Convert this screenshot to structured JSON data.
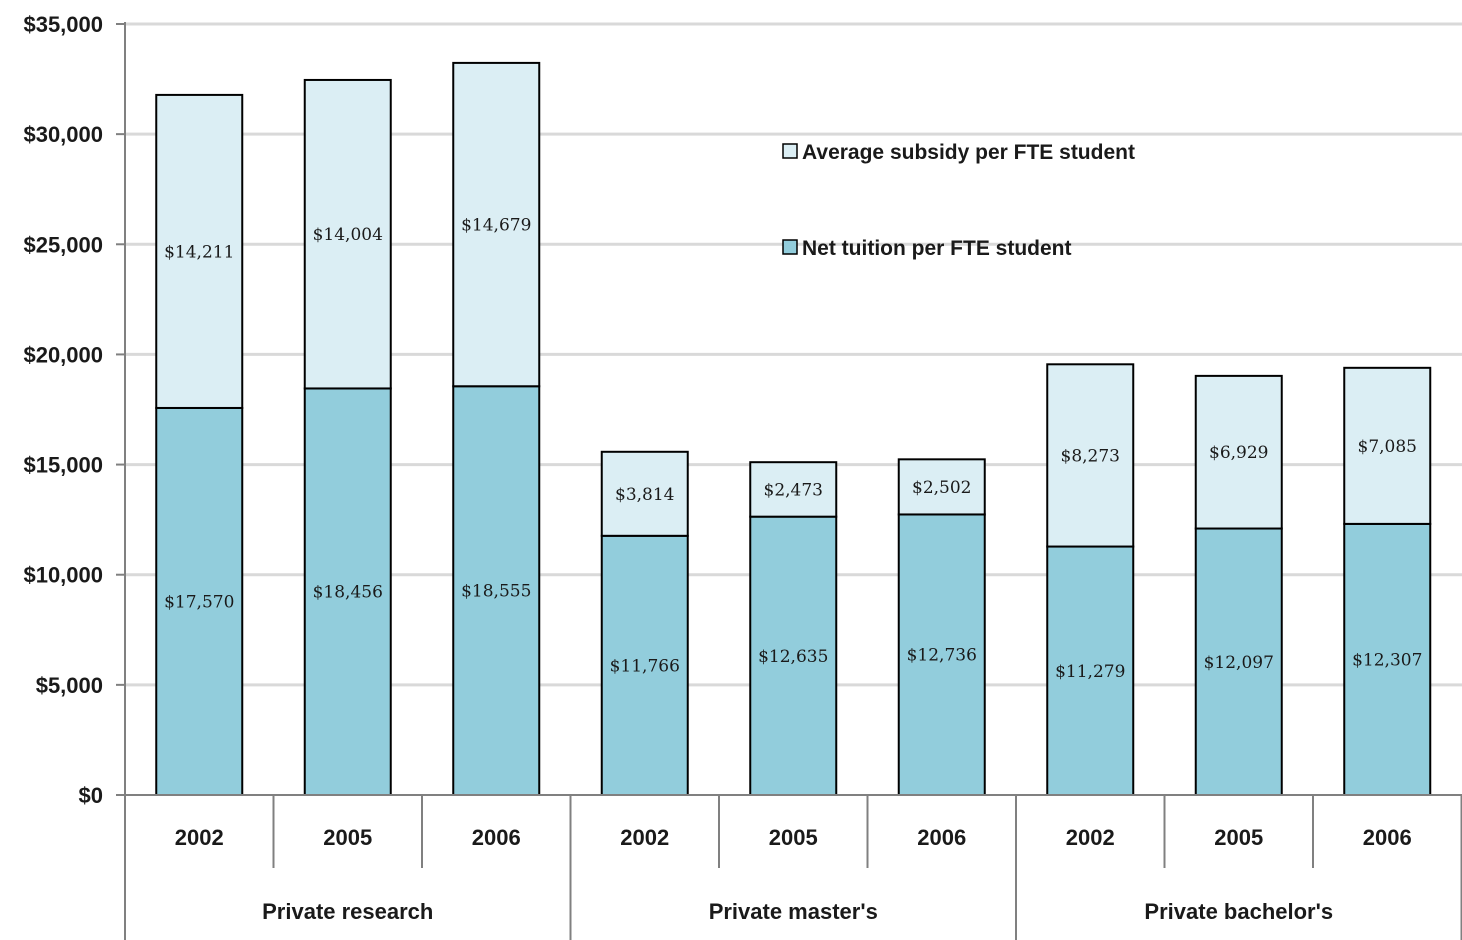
{
  "chart_data": {
    "type": "bar",
    "stacked": true,
    "groups": [
      {
        "label": "Private research",
        "categories": [
          "2002",
          "2005",
          "2006"
        ]
      },
      {
        "label": "Private master's",
        "categories": [
          "2002",
          "2005",
          "2006"
        ]
      },
      {
        "label": "Private bachelor's",
        "categories": [
          "2002",
          "2005",
          "2006"
        ]
      }
    ],
    "series": [
      {
        "name": "Net tuition per FTE student",
        "color": "#92cddc",
        "values": [
          17570,
          18456,
          18555,
          11766,
          12635,
          12736,
          11279,
          12097,
          12307
        ],
        "labels": [
          "$17,570",
          "$18,456",
          "$18,555",
          "$11,766",
          "$12,635",
          "$12,736",
          "$11,279",
          "$12,097",
          "$12,307"
        ]
      },
      {
        "name": "Average subsidy per FTE student",
        "color": "#dbeef4",
        "values": [
          14211,
          14004,
          14679,
          3814,
          2473,
          2502,
          8273,
          6929,
          7085
        ],
        "labels": [
          "$14,211",
          "$14,004",
          "$14,679",
          "$3,814",
          "$2,473",
          "$2,502",
          "$8,273",
          "$6,929",
          "$7,085"
        ]
      }
    ],
    "ylim": [
      0,
      35000
    ],
    "yticks": [
      0,
      5000,
      10000,
      15000,
      20000,
      25000,
      30000,
      35000
    ],
    "ytick_labels": [
      "$0",
      "$5,000",
      "$10,000",
      "$15,000",
      "$20,000",
      "$25,000",
      "$30,000",
      "$35,000"
    ],
    "grid": true,
    "legend": {
      "position": "top-right",
      "entries": [
        {
          "label": "Average subsidy per FTE student",
          "color": "#dbeef4"
        },
        {
          "label": "Net tuition per FTE student",
          "color": "#92cddc"
        }
      ]
    }
  }
}
